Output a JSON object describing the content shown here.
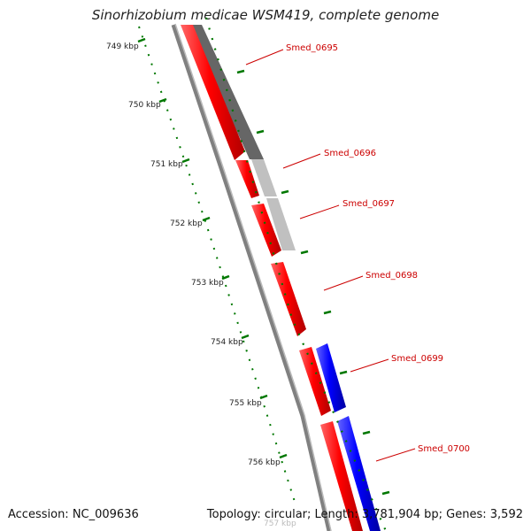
{
  "header": {
    "title": "Sinorhizobium medicae WSM419, complete genome"
  },
  "footer": {
    "accession": "Accession: NC_009636",
    "summary": "Topology: circular; Length: 3,781,904 bp; Genes: 3,592"
  },
  "ruler": {
    "ticks": [
      "749 kbp",
      "750 kbp",
      "751 kbp",
      "752 kbp",
      "753 kbp",
      "754 kbp",
      "755 kbp",
      "756 kbp",
      "757 kbp"
    ]
  },
  "genes": [
    "Smed_0695",
    "Smed_0696",
    "Smed_0697",
    "Smed_0698",
    "Smed_0699",
    "Smed_0700"
  ],
  "colors": {
    "cds": "#ff0000",
    "reverse_strand": "#0000ff",
    "gc_dark": "#666666",
    "gc_light": "#c0c0c0",
    "ruler": "#007700",
    "backbone": "#808080",
    "label": "#cc0000"
  }
}
